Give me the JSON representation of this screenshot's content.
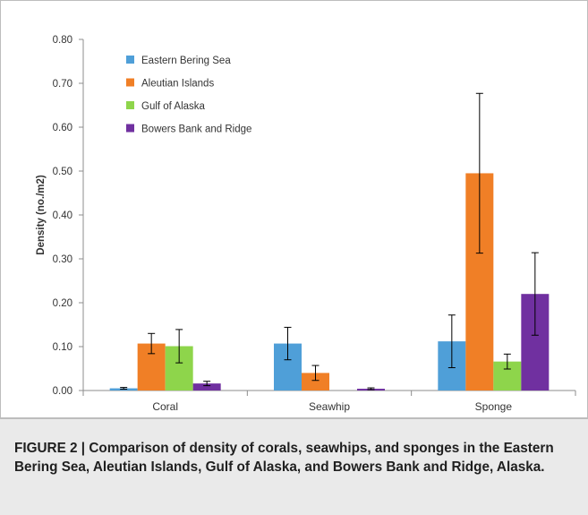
{
  "caption": "FIGURE 2 | Comparison of density of corals, seawhips, and sponges in the Eastern Bering Sea, Aleutian Islands, Gulf of Alaska, and Bowers Bank and Ridge, Alaska.",
  "chart_data": {
    "type": "bar",
    "title": "",
    "xlabel": "",
    "ylabel": "Density (no./m2)",
    "ylim": [
      0,
      0.8
    ],
    "yticks": [
      "0.00",
      "0.10",
      "0.20",
      "0.30",
      "0.40",
      "0.50",
      "0.60",
      "0.70",
      "0.80"
    ],
    "categories": [
      "Coral",
      "Seawhip",
      "Sponge"
    ],
    "legend_position": "top-left",
    "grid": false,
    "error_bars": true,
    "series": [
      {
        "name": "Eastern Bering Sea",
        "color": "#4f9fd8",
        "values": [
          0.005,
          0.107,
          0.112
        ],
        "errors": [
          0.002,
          0.037,
          0.06
        ]
      },
      {
        "name": "Aleutian Islands",
        "color": "#f07f26",
        "values": [
          0.107,
          0.04,
          0.495
        ],
        "errors": [
          0.023,
          0.017,
          0.182
        ]
      },
      {
        "name": "Gulf of Alaska",
        "color": "#8ed54b",
        "values": [
          0.101,
          0.0,
          0.066
        ],
        "errors": [
          0.038,
          0.0,
          0.017
        ]
      },
      {
        "name": "Bowers Bank and Ridge",
        "color": "#7030a0",
        "values": [
          0.016,
          0.004,
          0.22
        ],
        "errors": [
          0.005,
          0.002,
          0.094
        ]
      }
    ]
  }
}
